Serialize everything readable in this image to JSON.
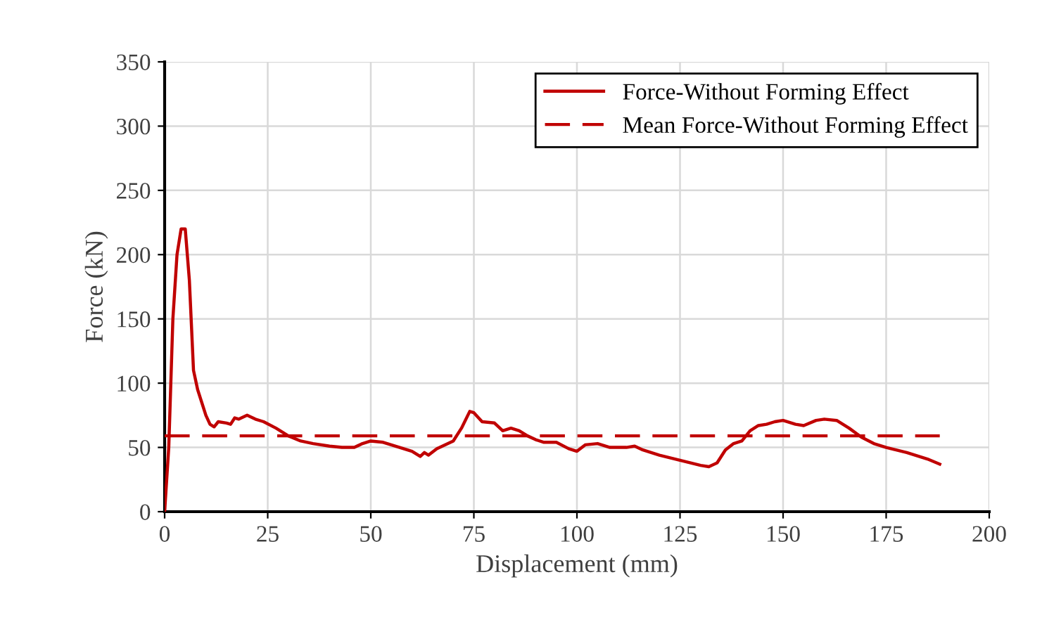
{
  "chart_data": {
    "type": "line",
    "xlabel": "Displacement (mm)",
    "ylabel": "Force (kN)",
    "xlim": [
      0,
      200
    ],
    "xticks": [
      0,
      25,
      50,
      75,
      100,
      125,
      150,
      175,
      200
    ],
    "ylim": [
      0,
      350
    ],
    "yticks": [
      0,
      50,
      100,
      150,
      200,
      250,
      300,
      350
    ],
    "grid": true,
    "legend": "top right",
    "marker": "none",
    "series": [
      {
        "name": "Force-Without Forming Effect",
        "color": "#c00000",
        "line_style": "solid",
        "x": [
          0,
          1,
          2,
          3,
          4,
          5,
          6,
          7,
          8,
          10,
          11,
          12,
          13,
          15,
          16,
          17,
          18,
          20,
          22,
          24,
          27,
          30,
          33,
          36,
          40,
          43,
          46,
          48,
          50,
          53,
          57,
          60,
          62,
          63,
          64,
          66,
          70,
          72,
          74,
          75,
          77,
          80,
          82,
          84,
          86,
          88,
          90,
          92,
          95,
          98,
          100,
          102,
          105,
          108,
          112,
          114,
          116,
          120,
          125,
          130,
          132,
          134,
          136,
          138,
          140,
          142,
          144,
          146,
          148,
          150,
          153,
          155,
          158,
          160,
          163,
          166,
          169,
          172,
          175,
          180,
          185,
          188
        ],
        "values": [
          0,
          50,
          150,
          200,
          220,
          220,
          180,
          110,
          95,
          75,
          68,
          66,
          70,
          69,
          68,
          73,
          72,
          75,
          72,
          70,
          65,
          59,
          55,
          53,
          51,
          50,
          50,
          53,
          55,
          54,
          50,
          47,
          43,
          46,
          44,
          49,
          55,
          65,
          78,
          77,
          70,
          69,
          63,
          65,
          63,
          59,
          56,
          54,
          54,
          49,
          47,
          52,
          53,
          50,
          50,
          51,
          48,
          44,
          40,
          36,
          35,
          38,
          48,
          53,
          55,
          63,
          67,
          68,
          70,
          71,
          68,
          67,
          71,
          72,
          71,
          65,
          58,
          53,
          50,
          46,
          41,
          37
        ]
      },
      {
        "name": "Mean Force-Without Forming Effect",
        "color": "#c00000",
        "line_style": "dashed",
        "x": [
          0,
          188
        ],
        "values": [
          59,
          59
        ]
      }
    ]
  }
}
